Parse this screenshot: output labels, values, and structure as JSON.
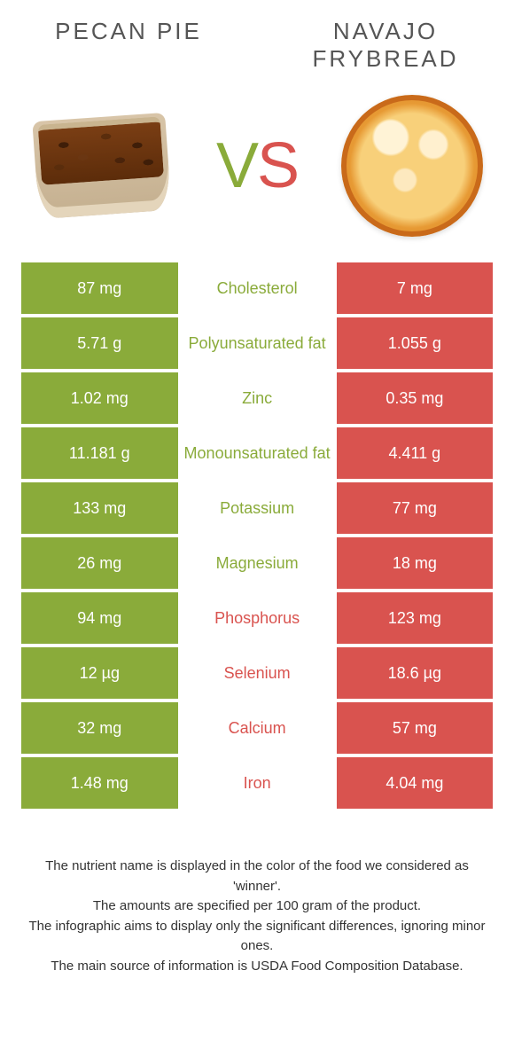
{
  "colors": {
    "left": "#8aab3a",
    "right": "#d9534f",
    "row_spacing": "4px",
    "background": "#ffffff"
  },
  "header": {
    "left_title": "Pecan pie",
    "right_title": "Navajo frybread",
    "vs_v": "V",
    "vs_s": "S"
  },
  "rows": [
    {
      "label": "Cholesterol",
      "left": "87 mg",
      "right": "7 mg",
      "winner": "left"
    },
    {
      "label": "Polyunsaturated fat",
      "left": "5.71 g",
      "right": "1.055 g",
      "winner": "left"
    },
    {
      "label": "Zinc",
      "left": "1.02 mg",
      "right": "0.35 mg",
      "winner": "left"
    },
    {
      "label": "Monounsaturated fat",
      "left": "11.181 g",
      "right": "4.411 g",
      "winner": "left"
    },
    {
      "label": "Potassium",
      "left": "133 mg",
      "right": "77 mg",
      "winner": "left"
    },
    {
      "label": "Magnesium",
      "left": "26 mg",
      "right": "18 mg",
      "winner": "left"
    },
    {
      "label": "Phosphorus",
      "left": "94 mg",
      "right": "123 mg",
      "winner": "right"
    },
    {
      "label": "Selenium",
      "left": "12 µg",
      "right": "18.6 µg",
      "winner": "right"
    },
    {
      "label": "Calcium",
      "left": "32 mg",
      "right": "57 mg",
      "winner": "right"
    },
    {
      "label": "Iron",
      "left": "1.48 mg",
      "right": "4.04 mg",
      "winner": "right"
    }
  ],
  "footer": {
    "line1": "The nutrient name is displayed in the color of the food we considered as 'winner'.",
    "line2": "The amounts are specified per 100 gram of the product.",
    "line3": "The infographic aims to display only the significant differences, ignoring minor ones.",
    "line4": "The main source of information is USDA Food Composition Database."
  }
}
